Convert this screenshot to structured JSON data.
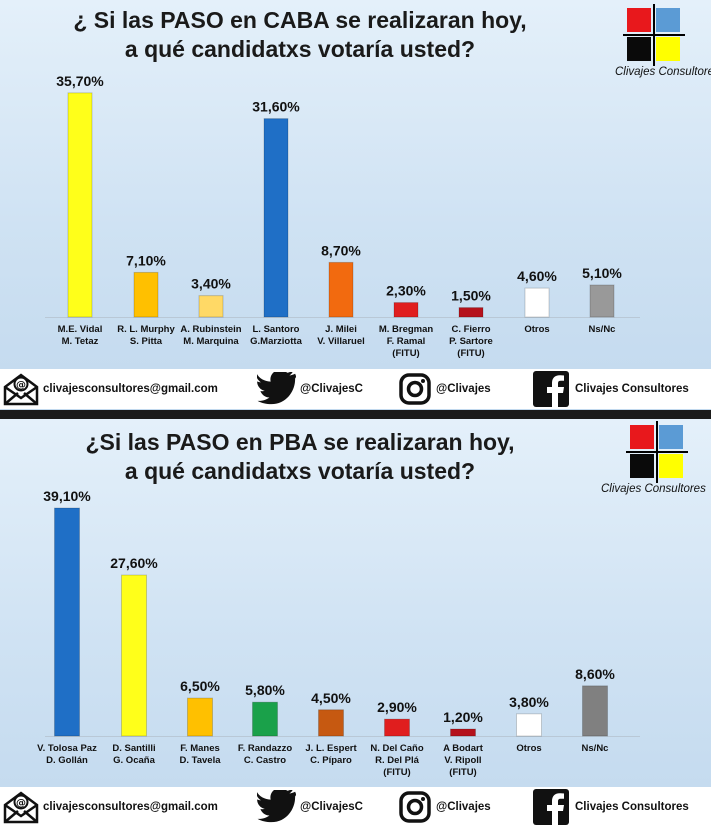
{
  "panels": [
    {
      "title_line1": "¿ Si las PASO en CABA se realizaran hoy,",
      "title_line2": "a qué candidatxs votaría usted?",
      "brand": "Clivajes Consultores",
      "footer": {
        "email": "clivajesconsultores@gmail.com",
        "twitter": "@ClivajesC",
        "instagram": "@Clivajes",
        "facebook": "Clivajes Consultores"
      }
    },
    {
      "title_line1": "¿Si las PASO en PBA se realizaran hoy,",
      "title_line2": "a qué candidatxs votaría usted?",
      "brand": "Clivajes Consultores",
      "footer": {
        "email": "clivajesconsultores@gmail.com",
        "twitter": "@ClivajesC",
        "instagram": "@Clivajes",
        "facebook": "Clivajes Consultores"
      }
    }
  ],
  "logo_colors": [
    "#e8181c",
    "#5b9bd5",
    "#0a0a0a",
    "#ffff00"
  ],
  "chart_data": [
    {
      "type": "bar",
      "title": "¿ Si las PASO en CABA se realizaran hoy, a qué candidatxs votaría usted?",
      "categories": [
        [
          "M.E. Vidal",
          "M. Tetaz"
        ],
        [
          "R. L. Murphy",
          "S. Pitta"
        ],
        [
          "A. Rubinstein",
          "M. Marquina"
        ],
        [
          "L. Santoro",
          "G.Marziotta"
        ],
        [
          "J. Milei",
          "V. Villaruel"
        ],
        [
          "M. Bregman",
          "F. Ramal",
          "(FITU)"
        ],
        [
          "C. Fierro",
          "P. Sartore",
          "(FITU)"
        ],
        [
          "Otros"
        ],
        [
          "Ns/Nc"
        ]
      ],
      "values": [
        35.7,
        7.1,
        3.4,
        31.6,
        8.7,
        2.3,
        1.5,
        4.6,
        5.1
      ],
      "value_labels": [
        "35,70%",
        "7,10%",
        "3,40%",
        "31,60%",
        "8,70%",
        "2,30%",
        "1,50%",
        "4,60%",
        "5,10%"
      ],
      "colors": [
        "#ffff1a",
        "#ffc000",
        "#ffd966",
        "#1f6fc6",
        "#f26a0f",
        "#e01e1e",
        "#b5121b",
        "#ffffff",
        "#999999"
      ],
      "ylim": [
        0,
        36
      ],
      "grid": false,
      "legend": "none"
    },
    {
      "type": "bar",
      "title": "¿Si las PASO en PBA se realizaran hoy, a qué candidatxs votaría usted?",
      "categories": [
        [
          "V. Tolosa Paz",
          "D. Gollán"
        ],
        [
          "D. Santilli",
          "G. Ocaña"
        ],
        [
          "F. Manes",
          "D. Tavela"
        ],
        [
          "F. Randazzo",
          "C. Castro"
        ],
        [
          "J. L. Espert",
          "C. Píparo"
        ],
        [
          "N. Del Caño",
          "R. Del Plá",
          "(FITU)"
        ],
        [
          "A Bodart",
          "V. Ripoll",
          "(FITU)"
        ],
        [
          "Otros"
        ],
        [
          "Ns/Nc"
        ]
      ],
      "values": [
        39.1,
        27.6,
        6.5,
        5.8,
        4.5,
        2.9,
        1.2,
        3.8,
        8.6
      ],
      "value_labels": [
        "39,10%",
        "27,60%",
        "6,50%",
        "5,80%",
        "4,50%",
        "2,90%",
        "1,20%",
        "3,80%",
        "8,60%"
      ],
      "colors": [
        "#1f6fc6",
        "#ffff1a",
        "#ffc000",
        "#1aa14a",
        "#c65911",
        "#e01e1e",
        "#b5121b",
        "#ffffff",
        "#808080"
      ],
      "ylim": [
        0,
        39.1
      ],
      "grid": false,
      "legend": "none"
    }
  ]
}
